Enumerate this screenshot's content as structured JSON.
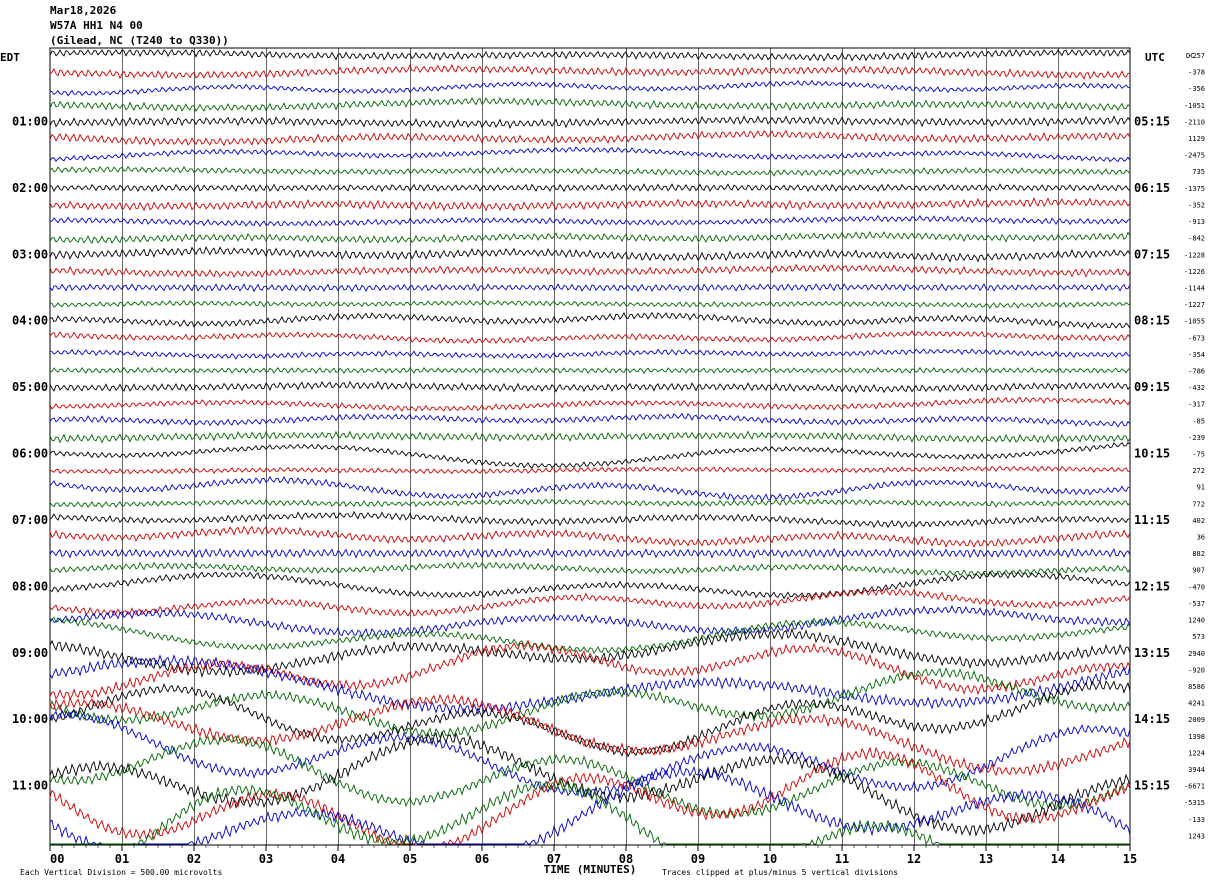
{
  "header": {
    "date": "Mar18,2026",
    "station": "W57A HH1 N4 00",
    "location": "(Gilead, NC (T240 to Q330))"
  },
  "left_axis_title": "EDT",
  "right_axis_title": "UTC",
  "dc_title": "DC",
  "xlabel": "TIME (MINUTES)",
  "footer_left": "Each Vertical Division = 500.00 microvolts",
  "footer_right": "Traces clipped at plus/minus 5 vertical divisions",
  "chart_data": {
    "type": "line",
    "title": "W57A HH1 N4 00",
    "xlabel": "TIME (MINUTES)",
    "x_ticks": [
      "00",
      "01",
      "02",
      "03",
      "04",
      "05",
      "06",
      "07",
      "08",
      "09",
      "10",
      "11",
      "12",
      "13",
      "14",
      "15"
    ],
    "xlim": [
      0,
      15
    ],
    "rows": 48,
    "row_minutes": 15,
    "trace_colors": [
      "#000000",
      "#cc0000",
      "#0000cc",
      "#006600"
    ],
    "edt_labels": [
      "01:00",
      "02:00",
      "03:00",
      "04:00",
      "05:00",
      "06:00",
      "07:00",
      "08:00",
      "09:00",
      "10:00",
      "11:00"
    ],
    "utc_labels": [
      "05:15",
      "06:15",
      "07:15",
      "08:15",
      "09:15",
      "10:15",
      "11:15",
      "12:15",
      "13:15",
      "14:15",
      "15:15"
    ],
    "dc_offsets": [
      "-257",
      "-378",
      "-356",
      "-1051",
      "-2110",
      "1129",
      "-2475",
      "735",
      "-1375",
      "-352",
      "-913",
      "-842",
      "-1228",
      "-1226",
      "-1144",
      "-1227",
      "-1055",
      "-673",
      "-354",
      "-786",
      "-432",
      "-317",
      "-85",
      "-239",
      "-75",
      "272",
      "91",
      "772",
      "402",
      "36",
      "882",
      "907",
      "-470",
      "-537",
      "1240",
      "573",
      "2940",
      "-920",
      "8586",
      "4241",
      "2009",
      "1398",
      "1224",
      "3944",
      "-6671",
      "-5315",
      "-133",
      "1243"
    ],
    "vertical_division_microvolts": 500.0,
    "clip_divisions": 5
  }
}
